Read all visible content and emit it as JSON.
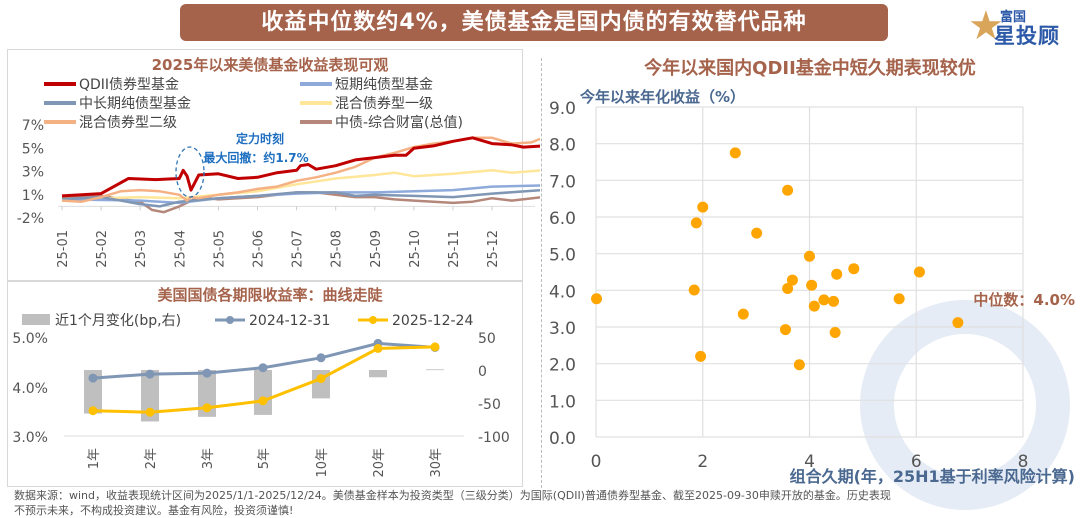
{
  "banner": {
    "title": "收益中位数约4%，美债基金是国内债的有效替代品种"
  },
  "logo": {
    "line1": "富国",
    "line2": "星投顾"
  },
  "colors": {
    "brand": "#a6634c",
    "qdii": "#c00000",
    "short": "#8eaadb",
    "midlong": "#7f96b5",
    "mix1": "#ffe699",
    "mix2": "#f4b183",
    "index": "#b4877a",
    "scatter": "#ffa500",
    "y2024": "#7f96b5",
    "y2025": "#ffc000",
    "bar": "#bfbfbf",
    "axislabel": "#4a6890"
  },
  "footnote": {
    "line1": "数据来源：wind，收益表现统计区间为2025/1/1-2025/12/24。美债基金样本为投资类型（三级分类）为国际(QDII)普通债券型基金、截至2025-09-30申赎开放的基金。历史表现",
    "line2": "不预示未来，不构成投资建议。基金有风险，投资须谨慎!"
  },
  "chart_data": [
    {
      "type": "line",
      "title": "2025年以来美债基金收益表现可观",
      "annotation": {
        "title": "定力时刻",
        "text": "最大回撤：约1.7%"
      },
      "ylabel": "",
      "yticks": [
        "7%",
        "5%",
        "3%",
        "1%",
        "-2%"
      ],
      "ylim": [
        -1,
        7
      ],
      "xticks": [
        "25-01",
        "25-02",
        "25-03",
        "25-04",
        "25-05",
        "25-06",
        "25-07",
        "25-08",
        "25-09",
        "25-10",
        "25-11",
        "25-12"
      ],
      "legend_position": "top",
      "series": [
        {
          "name": "QDII债券型基金",
          "color": "#c00000",
          "width": 3,
          "points": [
            [
              0,
              0.9
            ],
            [
              1,
              1.1
            ],
            [
              1.7,
              2.4
            ],
            [
              2.4,
              2.3
            ],
            [
              3,
              2.4
            ],
            [
              3.1,
              3.1
            ],
            [
              3.2,
              2.6
            ],
            [
              3.3,
              1.4
            ],
            [
              3.5,
              2.7
            ],
            [
              4,
              2.8
            ],
            [
              4.5,
              2.4
            ],
            [
              5,
              2.5
            ],
            [
              5.5,
              2.9
            ],
            [
              6,
              3.1
            ],
            [
              6.1,
              3.5
            ],
            [
              6.3,
              3.6
            ],
            [
              6.5,
              3.2
            ],
            [
              7,
              3.5
            ],
            [
              7.5,
              4.0
            ],
            [
              8,
              4.2
            ],
            [
              8.5,
              4.4
            ],
            [
              8.8,
              4.4
            ],
            [
              9,
              5.0
            ],
            [
              9.5,
              5.2
            ],
            [
              10,
              5.6
            ],
            [
              10.5,
              5.9
            ],
            [
              11,
              5.4
            ],
            [
              11.5,
              5.3
            ],
            [
              11.8,
              5.1
            ],
            [
              12.3,
              5.2
            ]
          ]
        },
        {
          "name": "短期纯债型基金",
          "color": "#8eaadb",
          "width": 2.5,
          "points": [
            [
              0,
              0.6
            ],
            [
              2,
              0.5
            ],
            [
              3,
              0.3
            ],
            [
              4,
              0.7
            ],
            [
              5,
              0.9
            ],
            [
              6,
              1.1
            ],
            [
              7,
              1.2
            ],
            [
              8,
              1.2
            ],
            [
              9,
              1.3
            ],
            [
              10,
              1.4
            ],
            [
              11,
              1.7
            ],
            [
              12.3,
              1.8
            ]
          ]
        },
        {
          "name": "中长期纯债型基金",
          "color": "#7f96b5",
          "width": 2.5,
          "points": [
            [
              0,
              0.6
            ],
            [
              1,
              0.8
            ],
            [
              2,
              0.2
            ],
            [
              2.5,
              0.0
            ],
            [
              3,
              0.4
            ],
            [
              4,
              0.7
            ],
            [
              5,
              0.9
            ],
            [
              6,
              1.2
            ],
            [
              7,
              1.2
            ],
            [
              7.5,
              0.9
            ],
            [
              8,
              1.0
            ],
            [
              9,
              0.9
            ],
            [
              10,
              0.8
            ],
            [
              11,
              1.1
            ],
            [
              12.3,
              1.4
            ]
          ]
        },
        {
          "name": "混合债券型一级",
          "color": "#ffe699",
          "width": 2.5,
          "points": [
            [
              0,
              0.6
            ],
            [
              1,
              0.7
            ],
            [
              2,
              0.8
            ],
            [
              3,
              0.7
            ],
            [
              4,
              1.0
            ],
            [
              5,
              1.3
            ],
            [
              6,
              1.9
            ],
            [
              7,
              2.4
            ],
            [
              8,
              2.7
            ],
            [
              8.5,
              2.9
            ],
            [
              9,
              2.6
            ],
            [
              10,
              2.8
            ],
            [
              11,
              3.1
            ],
            [
              11.5,
              2.9
            ],
            [
              12.3,
              3.1
            ]
          ]
        },
        {
          "name": "混合债券型二级",
          "color": "#f4b183",
          "width": 2.5,
          "points": [
            [
              0,
              0.5
            ],
            [
              0.5,
              0.4
            ],
            [
              1,
              0.8
            ],
            [
              1.5,
              1.3
            ],
            [
              2,
              1.4
            ],
            [
              2.5,
              1.3
            ],
            [
              3,
              1.0
            ],
            [
              3.2,
              0.5
            ],
            [
              3.3,
              0.8
            ],
            [
              3.5,
              0.7
            ],
            [
              4,
              1.0
            ],
            [
              4.5,
              1.2
            ],
            [
              5,
              1.5
            ],
            [
              5.5,
              1.7
            ],
            [
              6,
              2.2
            ],
            [
              6.5,
              2.5
            ],
            [
              7,
              2.9
            ],
            [
              7.5,
              3.4
            ],
            [
              8,
              4.2
            ],
            [
              8.5,
              4.6
            ],
            [
              9,
              5.1
            ],
            [
              9.5,
              5.4
            ],
            [
              10,
              5.6
            ],
            [
              10.5,
              5.9
            ],
            [
              11,
              5.9
            ],
            [
              11.5,
              5.4
            ],
            [
              12,
              5.5
            ],
            [
              12.3,
              5.9
            ]
          ]
        },
        {
          "name": "中债-综合财富(总值)",
          "color": "#b4877a",
          "width": 2.5,
          "points": [
            [
              0,
              0.8
            ],
            [
              1,
              0.9
            ],
            [
              2,
              0.4
            ],
            [
              2.3,
              -0.3
            ],
            [
              2.6,
              -0.5
            ],
            [
              3,
              0.0
            ],
            [
              3.5,
              0.8
            ],
            [
              4,
              0.6
            ],
            [
              5,
              0.8
            ],
            [
              6,
              1.2
            ],
            [
              6.5,
              1.2
            ],
            [
              7,
              1.0
            ],
            [
              7.5,
              0.8
            ],
            [
              8,
              0.8
            ],
            [
              8.5,
              0.6
            ],
            [
              9,
              0.5
            ],
            [
              10,
              0.3
            ],
            [
              10.5,
              0.4
            ],
            [
              11,
              0.7
            ],
            [
              11.5,
              0.5
            ],
            [
              12.3,
              0.8
            ]
          ]
        }
      ]
    },
    {
      "type": "bar+line",
      "title": "美国国债各期限收益率：曲线走陡",
      "categories": [
        "1年",
        "2年",
        "3年",
        "5年",
        "10年",
        "20年",
        "30年"
      ],
      "ylim_left": [
        3.0,
        5.0
      ],
      "yticks_left": [
        "5.0%",
        "4.0%",
        "3.0%"
      ],
      "ylim_right": [
        -100,
        50
      ],
      "yticks_right": [
        "50",
        "0",
        "-50",
        "-100"
      ],
      "bars": {
        "name": "近1个月变化(bp,右)",
        "values": [
          -66,
          -78,
          -71,
          -68,
          -43,
          -11,
          1
        ]
      },
      "series": [
        {
          "name": "2024-12-31",
          "values": [
            4.17,
            4.25,
            4.27,
            4.38,
            4.58,
            4.87,
            4.79
          ]
        },
        {
          "name": "2025-12-24",
          "values": [
            3.51,
            3.48,
            3.57,
            3.71,
            4.16,
            4.77,
            4.8
          ]
        }
      ]
    },
    {
      "type": "scatter",
      "title": "今年以来国内QDII基金中短久期表现较优",
      "ylabel": "今年以来年化收益（%）",
      "xlabel": "组合久期(年，25H1基于利率风险计算)",
      "xlim": [
        0,
        8
      ],
      "ylim": [
        0,
        9
      ],
      "xticks": [
        "0",
        "2",
        "4",
        "6",
        "8"
      ],
      "yticks": [
        "0.0",
        "1.0",
        "2.0",
        "3.0",
        "4.0",
        "5.0",
        "6.0",
        "7.0",
        "8.0",
        "9.0"
      ],
      "grid": true,
      "annotation": "中位数：4.0%",
      "points": [
        [
          0.01,
          3.77
        ],
        [
          2.61,
          7.75
        ],
        [
          3.59,
          6.73
        ],
        [
          2.0,
          6.27
        ],
        [
          1.88,
          5.84
        ],
        [
          3.01,
          5.56
        ],
        [
          4.0,
          4.93
        ],
        [
          4.83,
          4.59
        ],
        [
          6.06,
          4.5
        ],
        [
          4.51,
          4.44
        ],
        [
          3.68,
          4.28
        ],
        [
          3.59,
          4.05
        ],
        [
          4.04,
          4.14
        ],
        [
          1.84,
          4.01
        ],
        [
          5.68,
          3.77
        ],
        [
          4.27,
          3.74
        ],
        [
          4.45,
          3.7
        ],
        [
          4.09,
          3.57
        ],
        [
          2.76,
          3.35
        ],
        [
          6.78,
          3.12
        ],
        [
          3.55,
          2.93
        ],
        [
          4.48,
          2.85
        ],
        [
          1.96,
          2.2
        ],
        [
          3.81,
          1.97
        ]
      ]
    }
  ]
}
